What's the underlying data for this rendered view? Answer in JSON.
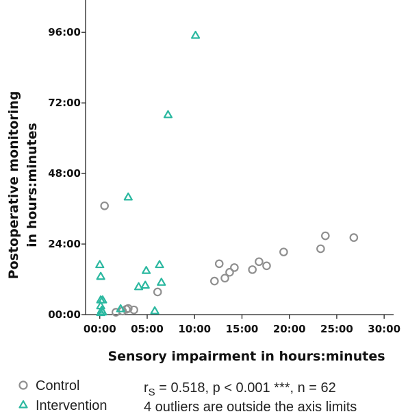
{
  "chart_data": {
    "type": "scatter",
    "xlabel": "Sensory impairment in hours:minutes",
    "ylabel_lines": [
      "Postoperative monitoring",
      "in hours:minutes"
    ],
    "x_ticks": [
      "00:00",
      "05:00",
      "10:00",
      "15:00",
      "20:00",
      "25:00",
      "30:00"
    ],
    "y_ticks": [
      "00:00",
      "24:00",
      "48:00",
      "72:00",
      "96:00"
    ],
    "xlim_hours": [
      -1.5,
      31
    ],
    "ylim_hours": [
      0,
      107
    ],
    "series": [
      {
        "name": "Control",
        "marker": "circle-open",
        "color": "#8f8f8f",
        "points": [
          [
            0.5,
            37.0
          ],
          [
            1.7,
            0.8
          ],
          [
            2.4,
            1.2
          ],
          [
            2.8,
            1.8
          ],
          [
            3.0,
            2.1
          ],
          [
            3.6,
            1.6
          ],
          [
            6.1,
            7.7
          ],
          [
            12.1,
            11.4
          ],
          [
            12.6,
            17.3
          ],
          [
            13.2,
            12.4
          ],
          [
            13.7,
            14.4
          ],
          [
            14.2,
            16.0
          ],
          [
            16.1,
            15.3
          ],
          [
            16.8,
            18.0
          ],
          [
            17.6,
            16.6
          ],
          [
            19.4,
            21.3
          ],
          [
            23.3,
            22.4
          ],
          [
            23.8,
            26.8
          ],
          [
            26.8,
            26.2
          ]
        ]
      },
      {
        "name": "Intervention",
        "marker": "triangle-open",
        "color": "#2bb8a0",
        "points": [
          [
            0.0,
            17.0
          ],
          [
            0.1,
            13.0
          ],
          [
            0.1,
            5.0
          ],
          [
            0.3,
            5.0
          ],
          [
            0.1,
            3.0
          ],
          [
            0.2,
            1.5
          ],
          [
            0.1,
            0.7
          ],
          [
            0.3,
            0.9
          ],
          [
            2.2,
            2.0
          ],
          [
            3.0,
            40.0
          ],
          [
            4.1,
            9.5
          ],
          [
            4.8,
            10.0
          ],
          [
            4.9,
            15.0
          ],
          [
            5.8,
            1.3
          ],
          [
            6.3,
            17.0
          ],
          [
            6.5,
            11.0
          ],
          [
            7.2,
            68.0
          ],
          [
            10.1,
            95.0
          ]
        ]
      }
    ],
    "legend_position": "bottom-left",
    "grid": false,
    "annotations": [
      "r_S = 0.518, p < 0.001 ***, n = 62",
      "4 outliers are outside the axis limits"
    ]
  },
  "stats": {
    "r_symbol": "r",
    "r_subscript": "S",
    "line1_rest": " = 0.518, p < 0.001 ***, n = 62",
    "line2": "4 outliers are outside the axis limits"
  }
}
